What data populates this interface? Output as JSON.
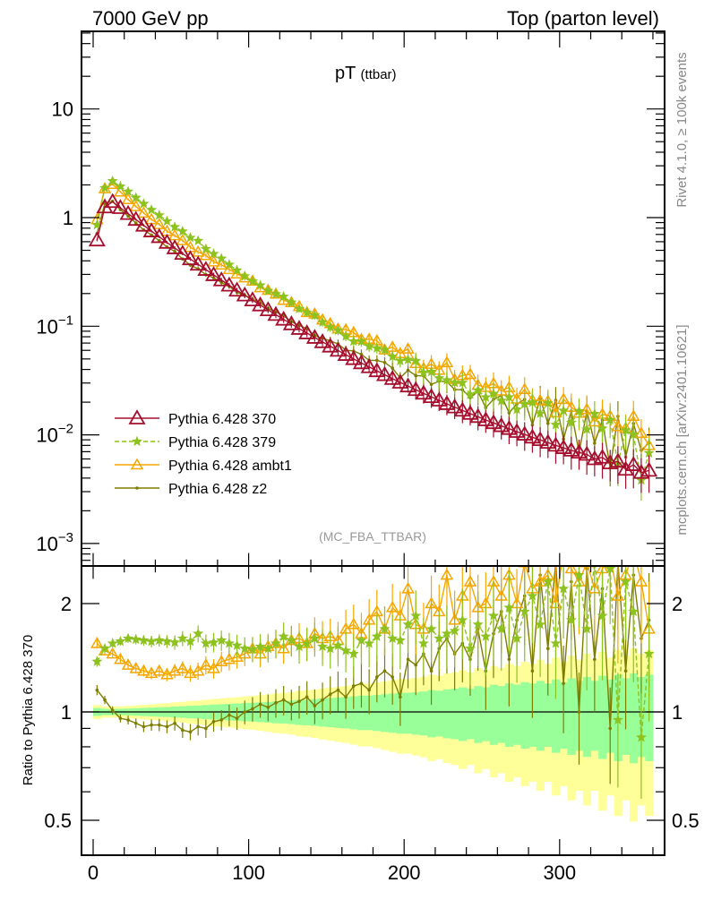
{
  "header": {
    "left": "7000 GeV pp",
    "right": "Top (parton level)"
  },
  "side_text": {
    "rivet": "Rivet 4.1.0, ≥ 100k events",
    "mcplots": "mcplots.cern.ch [arXiv:2401.10621]"
  },
  "chart_data": {
    "type": "line",
    "title": "pT",
    "title_sub": "(ttbar)",
    "analysis": "(MC_FBA_TTBAR)",
    "xlabel": "",
    "ylabel": "",
    "ratio_ylabel": "Ratio to Pythia 6.428 370",
    "xlim": [
      -7.5,
      367.5
    ],
    "ylim": [
      0.00062,
      52
    ],
    "yscale": "log",
    "ratio_ylim": [
      0.4,
      2.54
    ],
    "ratio_yscale": "log",
    "x_ticks": [
      "0",
      "100",
      "200",
      "300"
    ],
    "x_tick_values": [
      0,
      100,
      200,
      300
    ],
    "y_ticks": [
      {
        "v": 10,
        "base": "10",
        "exp": ""
      },
      {
        "v": 1,
        "base": "1",
        "exp": ""
      },
      {
        "v": 0.1,
        "base": "10",
        "exp": "−1"
      },
      {
        "v": 0.01,
        "base": "10",
        "exp": "−2"
      },
      {
        "v": 0.001,
        "base": "10",
        "exp": "−3"
      }
    ],
    "ratio_ticks": [
      {
        "v": 2,
        "label": "2"
      },
      {
        "v": 1,
        "label": "1"
      },
      {
        "v": 0.5,
        "label": "0.5"
      }
    ],
    "legend_position": "lower-left",
    "bin_width": 5,
    "x_first": 2.5,
    "reference": {
      "name": "Pythia 6.428 370",
      "color": "#a50f2d",
      "marker": "triangle",
      "values": [
        0.62,
        1.25,
        1.4,
        1.232,
        1.087,
        0.959,
        0.848,
        0.751,
        0.666,
        0.59,
        0.525,
        0.467,
        0.416,
        0.371,
        0.332,
        0.297,
        0.266,
        0.238,
        0.214,
        0.193,
        0.174,
        0.1565,
        0.1413,
        0.1278,
        0.1156,
        0.1048,
        0.0951,
        0.0865,
        0.0787,
        0.0717,
        0.0654,
        0.0598,
        0.0547,
        0.0501,
        0.0459,
        0.0422,
        0.0388,
        0.0357,
        0.0329,
        0.0304,
        0.0281,
        0.026,
        0.0241,
        0.0224,
        0.0208,
        0.0193,
        0.018,
        0.0168,
        0.0157,
        0.0147,
        0.0137,
        0.0129,
        0.0121,
        0.0114,
        0.0107,
        0.0101,
        0.0095,
        0.009,
        0.0085,
        0.008,
        0.0076,
        0.0072,
        0.0069,
        0.0066,
        0.006,
        0.0062,
        0.0055,
        0.0057,
        0.0048,
        0.0053,
        0.0045,
        0.0047
      ]
    },
    "series": [
      {
        "name": "Pythia 6.428 379",
        "color": "#8dc21f",
        "marker": "star",
        "dashed": true,
        "ratio": [
          1.38,
          1.5,
          1.55,
          1.57,
          1.6,
          1.59,
          1.58,
          1.57,
          1.58,
          1.57,
          1.56,
          1.6,
          1.57,
          1.65,
          1.55,
          1.56,
          1.58,
          1.55,
          1.53,
          1.5,
          1.49,
          1.52,
          1.5,
          1.55,
          1.62,
          1.58,
          1.52,
          1.55,
          1.6,
          1.52,
          1.5,
          1.53,
          1.48,
          1.45,
          1.58,
          1.55,
          1.62,
          1.7,
          1.6,
          1.58,
          1.75,
          1.85,
          1.55,
          1.7,
          1.6,
          1.65,
          1.68,
          1.8,
          1.5,
          1.75,
          1.62,
          1.85,
          1.7,
          1.95,
          1.6,
          1.9,
          2.1,
          1.75,
          2.3,
          1.55,
          2.2,
          1.8,
          2.4,
          1.7,
          2.6,
          1.85,
          2.5,
          0.95,
          2.3,
          1.9,
          0.85,
          1.45
        ]
      },
      {
        "name": "Pythia 6.428 ambt1",
        "color": "#f5a700",
        "marker": "triangle-small",
        "dashed": false,
        "ratio": [
          1.55,
          1.48,
          1.45,
          1.4,
          1.35,
          1.32,
          1.3,
          1.28,
          1.3,
          1.27,
          1.3,
          1.32,
          1.28,
          1.3,
          1.35,
          1.32,
          1.38,
          1.4,
          1.42,
          1.45,
          1.5,
          1.45,
          1.52,
          1.55,
          1.5,
          1.58,
          1.6,
          1.55,
          1.65,
          1.6,
          1.62,
          1.58,
          1.7,
          1.75,
          1.65,
          1.8,
          1.9,
          1.7,
          1.95,
          1.85,
          2.2,
          1.75,
          1.7,
          2.0,
          1.9,
          2.4,
          1.8,
          2.1,
          2.3,
          1.95,
          2.0,
          2.3,
          2.1,
          2.4,
          2.0,
          2.6,
          2.2,
          2.3,
          2.4,
          2.0,
          2.8,
          2.5,
          2.3,
          2.6,
          2.2,
          2.5,
          2.7,
          2.1,
          2.4,
          2.8,
          2.3,
          1.7
        ]
      },
      {
        "name": "Pythia 6.428 z2",
        "color": "#7d7d00",
        "marker": "dot",
        "dashed": false,
        "ratio": [
          1.15,
          1.08,
          1.01,
          0.96,
          0.95,
          0.93,
          0.91,
          0.92,
          0.92,
          0.91,
          0.93,
          0.89,
          0.88,
          0.91,
          0.9,
          0.94,
          0.95,
          0.98,
          0.96,
          1.0,
          1.02,
          1.05,
          1.03,
          1.06,
          1.08,
          1.05,
          1.07,
          1.1,
          1.04,
          1.08,
          1.12,
          1.15,
          1.1,
          1.18,
          1.2,
          1.15,
          1.25,
          1.3,
          1.25,
          1.1,
          1.4,
          1.35,
          1.45,
          1.3,
          1.5,
          1.6,
          1.45,
          1.55,
          1.4,
          1.7,
          1.3,
          1.65,
          1.9,
          1.4,
          1.8,
          2.1,
          1.3,
          2.4,
          1.5,
          2.6,
          1.2,
          2.3,
          1.0,
          2.5,
          1.4,
          2.2,
          0.9,
          2.6,
          1.3,
          2.4,
          1.6,
          1.8
        ]
      }
    ],
    "band_green": [
      0.025,
      0.02,
      0.02,
      0.02,
      0.022,
      0.024,
      0.026,
      0.028,
      0.03,
      0.032,
      0.035,
      0.037,
      0.04,
      0.042,
      0.045,
      0.048,
      0.05,
      0.053,
      0.055,
      0.058,
      0.06,
      0.063,
      0.066,
      0.07,
      0.072,
      0.075,
      0.08,
      0.082,
      0.085,
      0.09,
      0.093,
      0.097,
      0.1,
      0.105,
      0.11,
      0.11,
      0.115,
      0.12,
      0.125,
      0.13,
      0.13,
      0.135,
      0.14,
      0.15,
      0.145,
      0.155,
      0.16,
      0.17,
      0.16,
      0.18,
      0.17,
      0.19,
      0.18,
      0.2,
      0.19,
      0.21,
      0.2,
      0.22,
      0.2,
      0.23,
      0.21,
      0.24,
      0.22,
      0.25,
      0.22,
      0.26,
      0.23,
      0.27,
      0.24,
      0.28,
      0.25,
      0.27
    ],
    "band_yellow_factor": 1.8,
    "colors": {
      "band_green": "#99ff99",
      "band_yellow": "#ffff99"
    }
  }
}
